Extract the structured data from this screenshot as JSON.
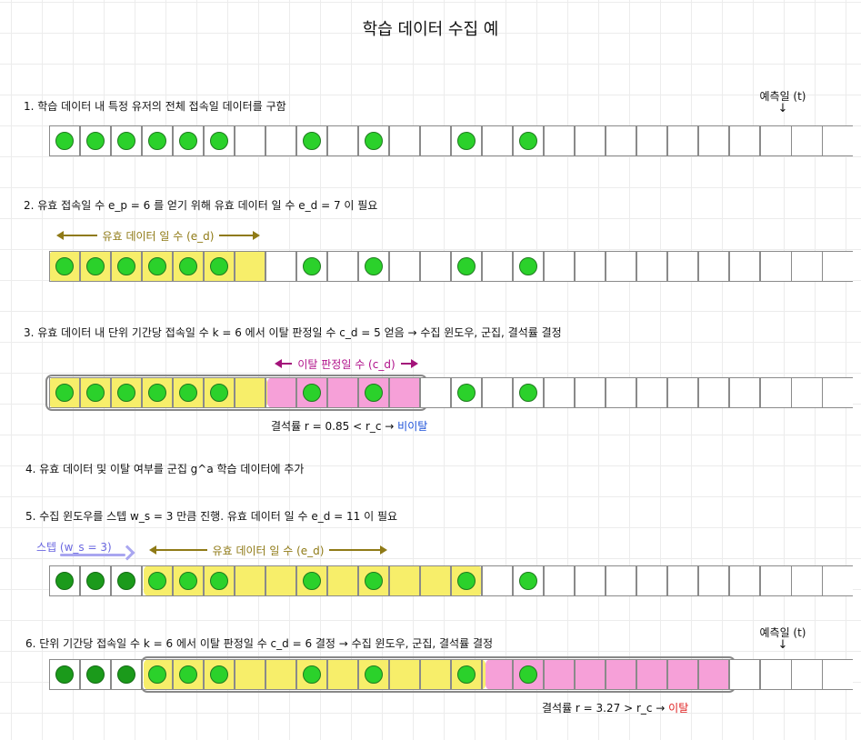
{
  "title": "학습 데이터 수집 예",
  "colors": {
    "dot": "#2bd12b",
    "dot_dark": "#1b9a1b",
    "yellow": "#f7ee6a",
    "pink": "#f6a0d8",
    "olive": "#8f7a16",
    "magenta": "#a3137a",
    "lavender": "#a9a6f0"
  },
  "steps": [
    "1. 학습 데이터 내 특정 유저의 전체 접속일 데이터를 구함",
    "2. 유효 접속일 수 e_p = 6 를 얻기 위해 유효 데이터 일 수 e_d = 7 이 필요",
    "3. 유효 데이터 내 단위 기간당 접속일 수 k  = 6 에서 이탈 판정일 수 c_d = 5 얻음 → 수집 윈도우, 군집, 결석률 결정",
    "4. 유효 데이터 및 이탈 여부를 군집 g^a 학습 데이터에 추가",
    "5. 수집 윈도우를 스텝 w_s = 3 만큼 진행. 유효 데이터 일 수 e_d = 11 이 필요",
    "6. 단위 기간당 접속일 수 k = 6 에서 이탈 판정일 수 c_d = 6 결정 → 수집 윈도우, 군집, 결석률 결정"
  ],
  "labels": {
    "predict_day": "예측일 (t)",
    "down_arrow": "↓",
    "effective_days": "유효 데이터 일 수 (e_d)",
    "churn_days": "이탈 판정일 수 (c_d)",
    "step_size": "스텝 (w_s = 3)"
  },
  "results": {
    "r1_prefix": "결석률 r = 0.85 < r_c → ",
    "r1_value": "비이탈",
    "r2_prefix": "결석률 r = 3.27 > r_c → ",
    "r2_value": "이탈"
  },
  "timeline": {
    "cells": 26,
    "active_days": [
      0,
      1,
      2,
      3,
      4,
      5,
      8,
      10,
      13,
      15
    ]
  },
  "rows": [
    {
      "active_dark": []
    },
    {
      "active_dark": []
    },
    {
      "active_dark": []
    },
    {
      "active_dark": [
        0,
        1,
        2
      ]
    },
    {
      "active_dark": [
        0,
        1,
        2
      ]
    }
  ]
}
